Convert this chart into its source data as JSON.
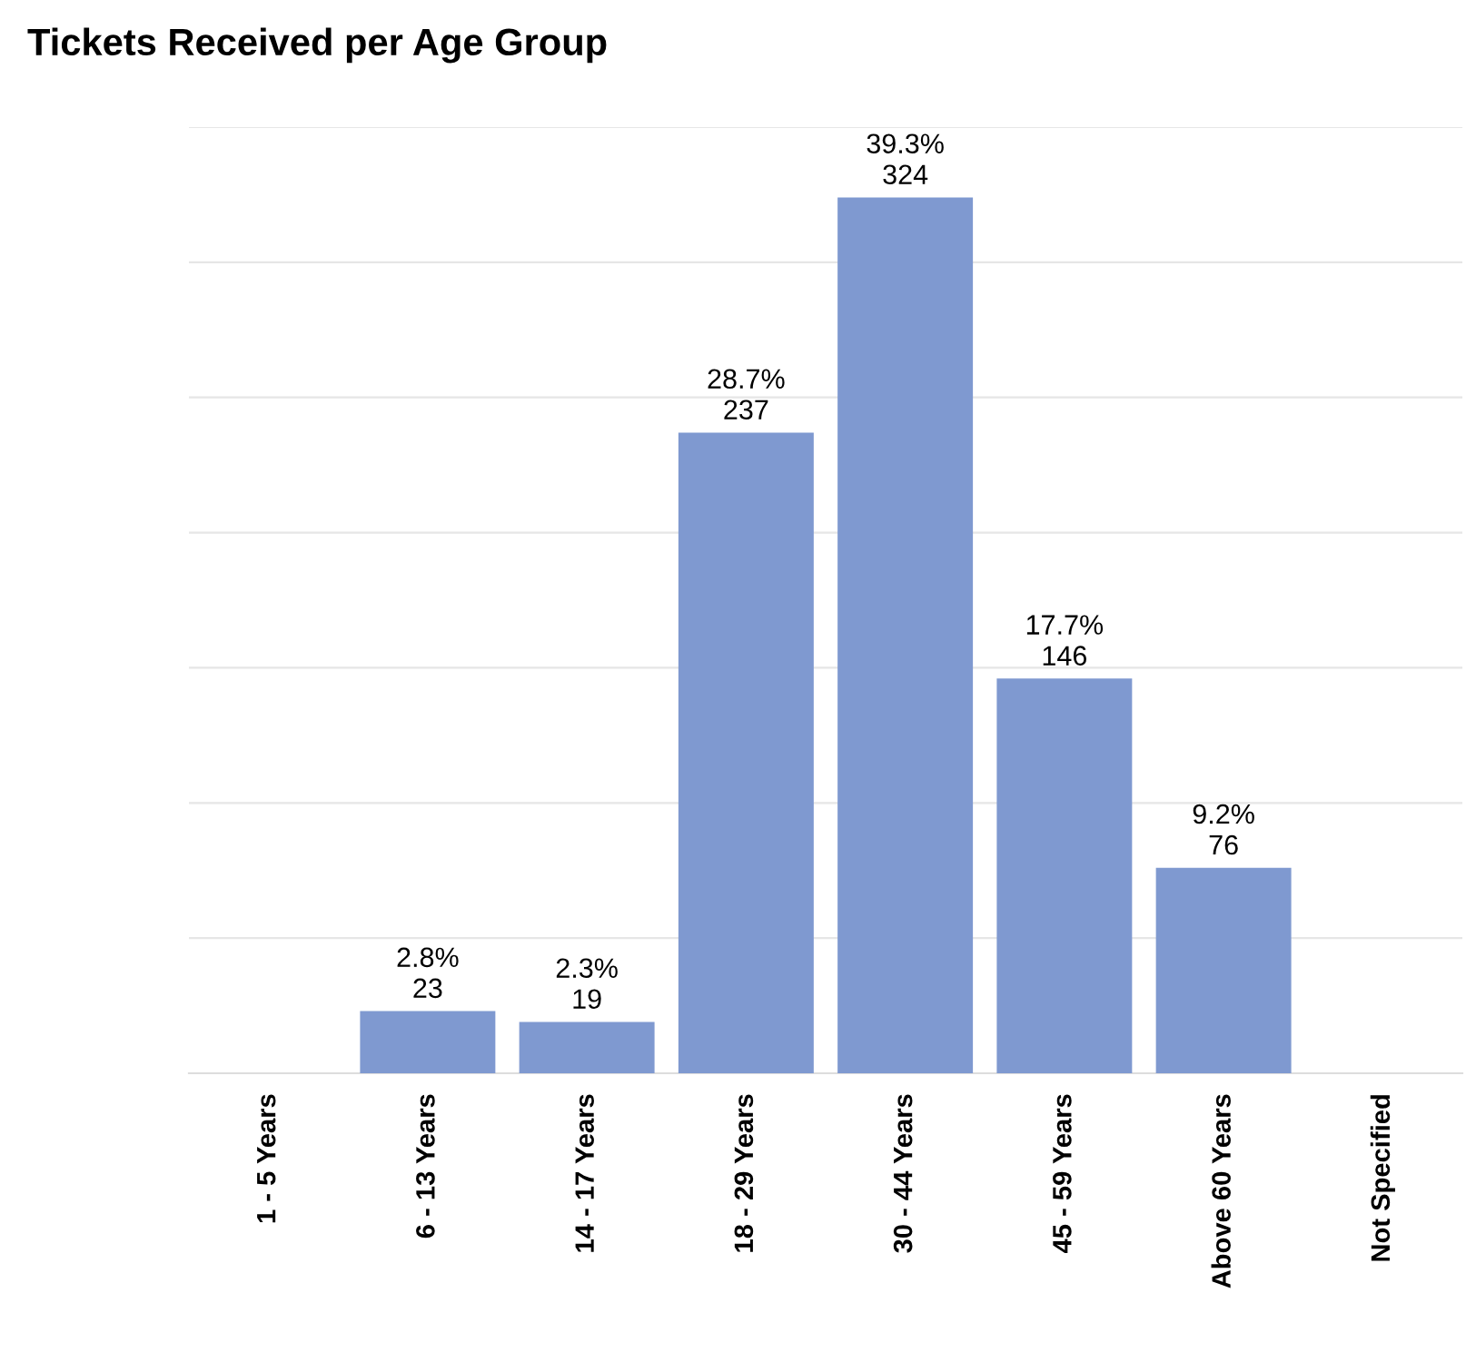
{
  "chart_data": {
    "type": "bar",
    "title": "Tickets Received per Age Group",
    "categories": [
      "1 - 5 Years",
      "6 - 13 Years",
      "14 - 17 Years",
      "18 - 29 Years",
      "30 - 44 Years",
      "45 - 59 Years",
      "Above 60 Years",
      "Not Specified"
    ],
    "values": [
      0,
      23,
      19,
      237,
      324,
      146,
      76,
      0
    ],
    "value_labels": [
      null,
      "2.8%\n23",
      "2.3%\n19",
      "28.7%\n237",
      "39.3%\n324",
      "17.7%\n146",
      "9.2%\n76",
      null
    ],
    "color": "#7f99d0",
    "ylim": [
      0,
      350
    ],
    "yticks": [
      {
        "value": 0,
        "label": null
      },
      {
        "value": 50,
        "label": null
      },
      {
        "value": 100,
        "label": null
      },
      {
        "value": 150,
        "label": null
      },
      {
        "value": 200,
        "label": null
      },
      {
        "value": 250,
        "label": null
      },
      {
        "value": 300,
        "label": null
      },
      {
        "value": 350,
        "label": null
      }
    ],
    "grid": "y",
    "tick_labels": "x"
  }
}
